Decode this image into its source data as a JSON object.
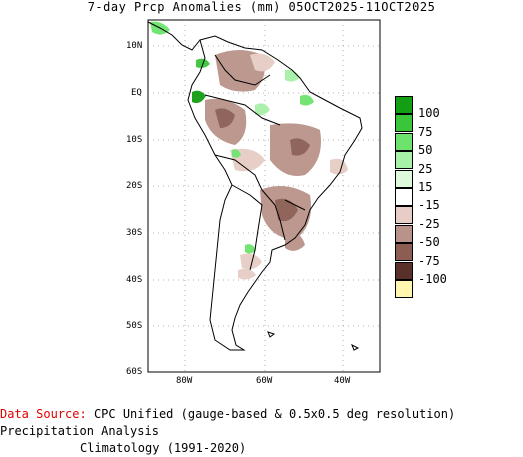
{
  "title": "7-day Prcp Anomalies (mm) 05OCT2025-11OCT2025",
  "lat_labels": [
    "10N",
    "EQ",
    "10S",
    "20S",
    "30S",
    "40S",
    "50S",
    "60S"
  ],
  "lon_labels": [
    "80W",
    "60W",
    "40W"
  ],
  "legend": [
    {
      "label": "100",
      "color": "#139e13"
    },
    {
      "label": "75",
      "color": "#3ac63a"
    },
    {
      "label": "50",
      "color": "#6de36d"
    },
    {
      "label": "25",
      "color": "#a7f0a7"
    },
    {
      "label": "15",
      "color": "#ddfadd"
    },
    {
      "label": "-15",
      "color": "#ffffff"
    },
    {
      "label": "-25",
      "color": "#e6cdc6"
    },
    {
      "label": "-50",
      "color": "#b9938a"
    },
    {
      "label": "-75",
      "color": "#8b5d53"
    },
    {
      "label": "-100",
      "color": "#5a3128"
    },
    {
      "label": "",
      "color": "#fff6b0"
    }
  ],
  "source_label": "Data Source:",
  "source_line1": "CPC Unified (gauge-based & 0.5x0.5 deg resolution) Precipitation Analysis",
  "source_line2": "Climatology (1991-2020)"
}
